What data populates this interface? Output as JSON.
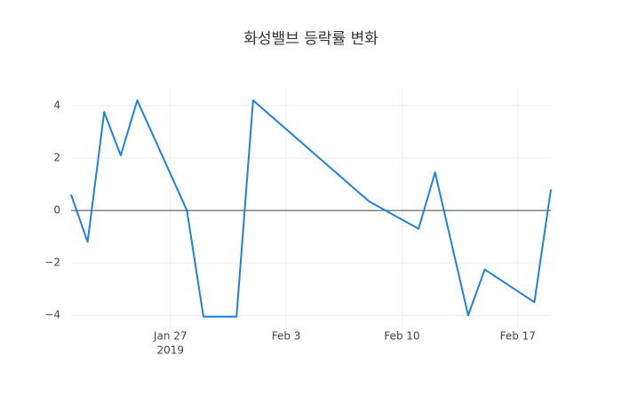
{
  "chart_data": {
    "type": "line",
    "title": "화성밸브 등락률 변화",
    "x": [
      "2019-01-21",
      "2019-01-22",
      "2019-01-23",
      "2019-01-24",
      "2019-01-25",
      "2019-01-28",
      "2019-01-29",
      "2019-01-31",
      "2019-02-01",
      "2019-02-08",
      "2019-02-11",
      "2019-02-12",
      "2019-02-14",
      "2019-02-15",
      "2019-02-18",
      "2019-02-19"
    ],
    "series": [
      {
        "name": "등락률",
        "color": "#1e80e0",
        "values": [
          0.6,
          -1.2,
          3.75,
          2.1,
          4.2,
          0.0,
          -4.05,
          -4.05,
          4.2,
          0.35,
          -0.7,
          1.45,
          -4.0,
          -2.25,
          -3.5,
          0.8
        ]
      }
    ],
    "xlim": [
      "2019-01-21",
      "2019-02-19"
    ],
    "xticks": [
      {
        "value": "2019-01-27",
        "label": "Jan 27"
      },
      {
        "value": "2019-02-03",
        "label": "Feb 3"
      },
      {
        "value": "2019-02-10",
        "label": "Feb 10"
      },
      {
        "value": "2019-02-17",
        "label": "Feb 17"
      }
    ],
    "x_year_label": "2019",
    "ylim": [
      -4.5,
      4.64
    ],
    "yticks": [
      {
        "value": -4,
        "label": "−4"
      },
      {
        "value": -2,
        "label": "−2"
      },
      0,
      2,
      4
    ],
    "grid": true,
    "zero_line": true
  }
}
